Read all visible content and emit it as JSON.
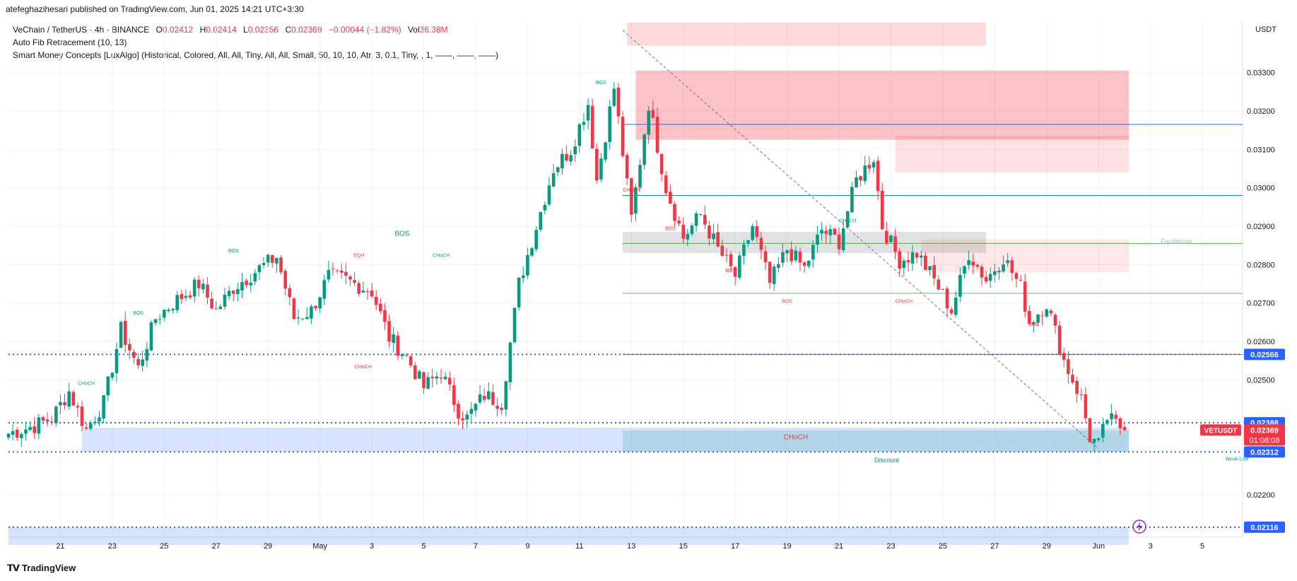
{
  "header": {
    "publisher": "atefeghazihesari published on TradingView.com, Jun 01, 2025 14:21 UTC+3:30"
  },
  "legend": {
    "symbol": "VeChain / TetherUS · 4h · BINANCE",
    "o_label": "O",
    "o": "0.02412",
    "h_label": "H",
    "h": "0.02414",
    "l_label": "L",
    "l": "0.02356",
    "c_label": "C",
    "c": "0.02369",
    "change": "−0.00044 (−1.82%)",
    "vol_label": "Vol",
    "vol": "36.38M",
    "ind1": "Auto Fib Retracement (10, 13)",
    "ind2": "Smart Money Concepts [LuxAlgo] (Historical, Colored, All, All, Tiny, All, All, Small, 50, 10, 10, Atr, 3, 0.1, Tiny, , 1, ——, ——, ——)"
  },
  "footer": {
    "brand": "TradingView",
    "logo": "tv-logo"
  },
  "colors": {
    "up": "#089981",
    "down": "#f23645",
    "blue": "#2962ff",
    "grid": "#f0f3fa",
    "text": "#131722"
  },
  "chart_data": {
    "type": "candlestick",
    "title": "VeChain / TetherUS · 4h · BINANCE",
    "currency": "USDT",
    "ylim": [
      0.0209,
      0.0343
    ],
    "y_ticks": [
      "0.03300",
      "0.03200",
      "0.03100",
      "0.03000",
      "0.02900",
      "0.02800",
      "0.02700",
      "0.02600",
      "0.02500",
      "0.02200"
    ],
    "x_ticks": [
      {
        "label": "21",
        "idx": 12
      },
      {
        "label": "23",
        "idx": 24
      },
      {
        "label": "25",
        "idx": 36
      },
      {
        "label": "27",
        "idx": 48
      },
      {
        "label": "29",
        "idx": 60
      },
      {
        "label": "May",
        "idx": 72
      },
      {
        "label": "3",
        "idx": 84
      },
      {
        "label": "5",
        "idx": 96
      },
      {
        "label": "7",
        "idx": 108
      },
      {
        "label": "9",
        "idx": 120
      },
      {
        "label": "11",
        "idx": 132
      },
      {
        "label": "13",
        "idx": 144
      },
      {
        "label": "15",
        "idx": 156
      },
      {
        "label": "17",
        "idx": 168
      },
      {
        "label": "19",
        "idx": 180
      },
      {
        "label": "21",
        "idx": 192
      },
      {
        "label": "23",
        "idx": 204
      },
      {
        "label": "25",
        "idx": 216
      },
      {
        "label": "27",
        "idx": 228
      },
      {
        "label": "29",
        "idx": 240
      },
      {
        "label": "Jun",
        "idx": 252
      },
      {
        "label": "3",
        "idx": 264
      },
      {
        "label": "5",
        "idx": 276
      }
    ],
    "candle_count": 259,
    "anchors": [
      [
        0,
        0.0236
      ],
      [
        6,
        0.0238
      ],
      [
        10,
        0.024
      ],
      [
        14,
        0.0247
      ],
      [
        18,
        0.0237
      ],
      [
        22,
        0.0244
      ],
      [
        26,
        0.0263
      ],
      [
        30,
        0.0253
      ],
      [
        34,
        0.0266
      ],
      [
        38,
        0.027
      ],
      [
        44,
        0.0275
      ],
      [
        48,
        0.0268
      ],
      [
        52,
        0.0274
      ],
      [
        58,
        0.0279
      ],
      [
        62,
        0.0282
      ],
      [
        66,
        0.0266
      ],
      [
        70,
        0.0268
      ],
      [
        74,
        0.0277
      ],
      [
        78,
        0.0276
      ],
      [
        84,
        0.0273
      ],
      [
        88,
        0.0261
      ],
      [
        92,
        0.0256
      ],
      [
        96,
        0.0248
      ],
      [
        100,
        0.0252
      ],
      [
        104,
        0.0242
      ],
      [
        106,
        0.024
      ],
      [
        110,
        0.0246
      ],
      [
        114,
        0.0244
      ],
      [
        118,
        0.0275
      ],
      [
        122,
        0.029
      ],
      [
        126,
        0.0305
      ],
      [
        130,
        0.031
      ],
      [
        134,
        0.0322
      ],
      [
        136,
        0.0302
      ],
      [
        140,
        0.0326
      ],
      [
        144,
        0.0292
      ],
      [
        148,
        0.0322
      ],
      [
        152,
        0.03
      ],
      [
        156,
        0.0287
      ],
      [
        160,
        0.0293
      ],
      [
        164,
        0.0284
      ],
      [
        168,
        0.0277
      ],
      [
        172,
        0.029
      ],
      [
        176,
        0.0275
      ],
      [
        180,
        0.0284
      ],
      [
        184,
        0.0279
      ],
      [
        188,
        0.0289
      ],
      [
        192,
        0.0286
      ],
      [
        196,
        0.0302
      ],
      [
        200,
        0.0308
      ],
      [
        202,
        0.029
      ],
      [
        206,
        0.0281
      ],
      [
        210,
        0.0283
      ],
      [
        214,
        0.0276
      ],
      [
        218,
        0.0268
      ],
      [
        222,
        0.0283
      ],
      [
        226,
        0.0276
      ],
      [
        230,
        0.0282
      ],
      [
        234,
        0.0274
      ],
      [
        236,
        0.0265
      ],
      [
        240,
        0.027
      ],
      [
        244,
        0.0255
      ],
      [
        248,
        0.0245
      ],
      [
        250,
        0.0235
      ],
      [
        252,
        0.0233
      ],
      [
        254,
        0.024
      ],
      [
        258,
        0.0237
      ]
    ],
    "levels": [
      {
        "price": 0.02566,
        "label": "0.02566",
        "color": "#2962ff",
        "style": "dotted",
        "from": 0,
        "tag_color": "#2962ff"
      },
      {
        "price": 0.02566,
        "label": "",
        "color": "#f23645",
        "style": "solid",
        "from": 142
      },
      {
        "price": 0.02388,
        "label": "0.02388",
        "color": "#2962ff",
        "style": "dotted",
        "from": 0,
        "tag_color": "#2962ff"
      },
      {
        "price": 0.02312,
        "label": "0.02312",
        "color": "#2962ff",
        "style": "dotted",
        "from": 0,
        "tag_color": "#2962ff"
      },
      {
        "price": 0.02116,
        "label": "0.02116",
        "color": "#2962ff",
        "style": "dotted",
        "from": 0,
        "tag_color": "#2962ff"
      },
      {
        "price": 0.0298,
        "label": "",
        "color": "#089981",
        "style": "solid",
        "from": 142
      },
      {
        "price": 0.02855,
        "label": "",
        "color": "#4caf50",
        "style": "solid",
        "from": 142
      },
      {
        "price": 0.02725,
        "label": "",
        "color": "#66bb6a",
        "style": "solid",
        "from": 142
      },
      {
        "price": 0.03165,
        "label": "",
        "color": "#2962ff",
        "style": "solid",
        "from": 142
      }
    ],
    "last_price": {
      "label": "VETUSDT",
      "price": "0.02369",
      "countdown": "01:08:08",
      "value": 0.02369
    },
    "zones": [
      {
        "p1": 0.0343,
        "p2": 0.0337,
        "i1": 143,
        "i2": 226,
        "color": "rgba(242,54,69,0.18)"
      },
      {
        "p1": 0.03305,
        "p2": 0.03125,
        "i1": 145,
        "i2": 259,
        "color": "rgba(242,54,69,0.30)"
      },
      {
        "p1": 0.03135,
        "p2": 0.0304,
        "i1": 205,
        "i2": 259,
        "color": "rgba(242,54,69,0.15)"
      },
      {
        "p1": 0.02885,
        "p2": 0.0283,
        "i1": 142,
        "i2": 226,
        "color": "rgba(120,123,134,0.22)"
      },
      {
        "p1": 0.02865,
        "p2": 0.0278,
        "i1": 211,
        "i2": 259,
        "color": "rgba(242,54,69,0.12)"
      },
      {
        "p1": 0.02375,
        "p2": 0.02312,
        "i1": 17,
        "i2": 259,
        "color": "rgba(41,98,255,0.18)"
      },
      {
        "p1": 0.02368,
        "p2": 0.02312,
        "i1": 142,
        "i2": 259,
        "color": "rgba(8,153,129,0.18)"
      },
      {
        "p1": 0.02116,
        "p2": 0.0207,
        "i1": 0,
        "i2": 259,
        "color": "rgba(41,98,255,0.18)"
      }
    ],
    "annotations": [
      {
        "text": "BOS",
        "idx": 91,
        "price": 0.02875,
        "color": "#089981",
        "size": 10
      },
      {
        "text": "BOS",
        "idx": 52,
        "price": 0.02832,
        "color": "#089981",
        "size": 7
      },
      {
        "text": "BOS",
        "idx": 30,
        "price": 0.0267,
        "color": "#089981",
        "size": 7
      },
      {
        "text": "CHoCH",
        "idx": 18,
        "price": 0.02487,
        "color": "#089981",
        "size": 7
      },
      {
        "text": "EQH",
        "idx": 81,
        "price": 0.0282,
        "color": "#f23645",
        "size": 7
      },
      {
        "text": "CHoCH",
        "idx": 100,
        "price": 0.0282,
        "color": "#089981",
        "size": 7
      },
      {
        "text": "CHoCH",
        "idx": 82,
        "price": 0.0253,
        "color": "#f23645",
        "size": 7
      },
      {
        "text": "BOS",
        "idx": 137,
        "price": 0.0327,
        "color": "#089981",
        "size": 7
      },
      {
        "text": "CHoCH",
        "idx": 144,
        "price": 0.0299,
        "color": "#f23645",
        "size": 7
      },
      {
        "text": "BOS",
        "idx": 153,
        "price": 0.0289,
        "color": "#f23645",
        "size": 7
      },
      {
        "text": "BOS",
        "idx": 167,
        "price": 0.0278,
        "color": "#f23645",
        "size": 7
      },
      {
        "text": "BOS",
        "idx": 180,
        "price": 0.027,
        "color": "#f23645",
        "size": 7
      },
      {
        "text": "CHoCH",
        "idx": 194,
        "price": 0.0291,
        "color": "#089981",
        "size": 7
      },
      {
        "text": "CHoCH",
        "idx": 207,
        "price": 0.027,
        "color": "#f23645",
        "size": 7
      },
      {
        "text": "BOS",
        "idx": 237,
        "price": 0.0264,
        "color": "#f23645",
        "size": 7
      },
      {
        "text": "CHoCH",
        "idx": 182,
        "price": 0.02345,
        "color": "#f23645",
        "size": 10
      },
      {
        "text": "Discount",
        "idx": 203,
        "price": 0.02285,
        "color": "#089981",
        "size": 9
      },
      {
        "text": "Equilibrium",
        "idx": 270,
        "price": 0.02855,
        "color": "#b2b5be",
        "size": 9
      },
      {
        "text": "Weak Low",
        "idx": 284,
        "price": 0.0229,
        "color": "#089981",
        "size": 7
      }
    ]
  }
}
